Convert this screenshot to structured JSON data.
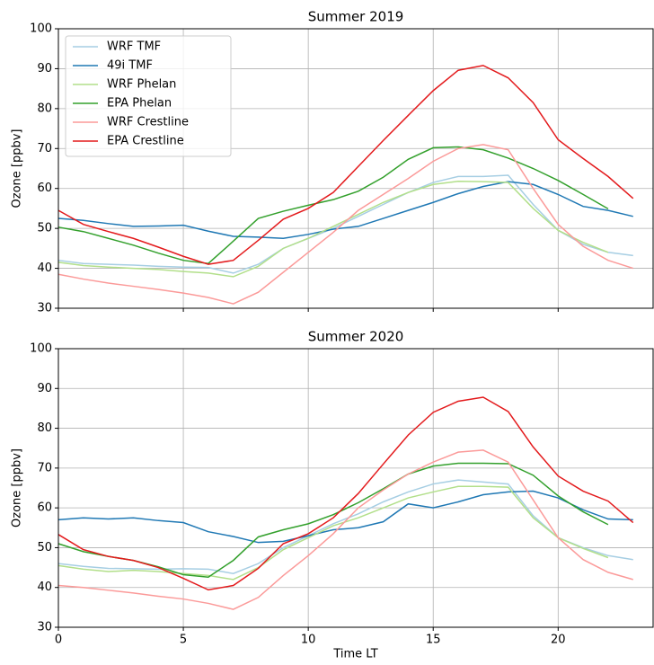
{
  "chart_data": [
    {
      "type": "line",
      "title": "Summer 2019",
      "ylabel": "Ozone [ppbv]",
      "grid": true,
      "legend": "upper left",
      "x": [
        0,
        1,
        2,
        3,
        4,
        5,
        6,
        7,
        8,
        9,
        10,
        11,
        12,
        13,
        14,
        15,
        16,
        17,
        18,
        19,
        20,
        21,
        22,
        23
      ],
      "xlim": [
        0,
        23.8
      ],
      "xticks": [
        0,
        5,
        10,
        15,
        20
      ],
      "ylim": [
        30,
        100
      ],
      "yticks": [
        30,
        40,
        50,
        60,
        70,
        80,
        90,
        100
      ],
      "series": [
        {
          "name": "WRF TMF",
          "color": "#a6cee3",
          "values": [
            42,
            41.2,
            41,
            40.8,
            40.5,
            40.3,
            40.2,
            38.8,
            41,
            45,
            47.5,
            50,
            53,
            56,
            59,
            61.5,
            63,
            63,
            63.3,
            56,
            49.5,
            46,
            44,
            43.2
          ]
        },
        {
          "name": "49i TMF",
          "color": "#1f78b4",
          "values": [
            52.5,
            52,
            51.2,
            50.5,
            50.6,
            50.8,
            49.3,
            48,
            47.8,
            47.5,
            48.5,
            49.8,
            50.5,
            52.5,
            54.5,
            56.5,
            58.7,
            60.5,
            61.7,
            61,
            58.5,
            55.5,
            54.5,
            53
          ]
        },
        {
          "name": "WRF Phelan",
          "color": "#b2df8a",
          "values": [
            41.5,
            40.7,
            40.3,
            40,
            39.7,
            39.2,
            38.8,
            37.9,
            40.5,
            45,
            47.5,
            50.5,
            53.5,
            56.5,
            59,
            61,
            61.8,
            61.7,
            61.5,
            55,
            49.5,
            46.5,
            44,
            null
          ]
        },
        {
          "name": "EPA Phelan",
          "color": "#33a02c",
          "values": [
            50.3,
            49.2,
            47.5,
            45.8,
            43.8,
            42,
            41.2,
            46.8,
            52.5,
            54.3,
            55.8,
            57.2,
            59.3,
            62.8,
            67.3,
            70.2,
            70.4,
            69.7,
            67.6,
            65,
            62,
            58.5,
            54.9,
            null
          ]
        },
        {
          "name": "WRF Crestline",
          "color": "#fb9a99",
          "values": [
            38.5,
            37.3,
            36.3,
            35.5,
            34.7,
            33.8,
            32.7,
            31.1,
            34,
            39,
            44,
            49,
            54.5,
            58.5,
            62.5,
            66.8,
            70,
            71,
            69.7,
            60,
            51,
            45.5,
            42,
            40
          ]
        },
        {
          "name": "EPA Crestline",
          "color": "#e31a1c",
          "values": [
            54.5,
            51,
            49.2,
            47.5,
            45.3,
            43,
            41,
            42,
            47,
            52.3,
            55,
            59,
            65.5,
            72,
            78.3,
            84.5,
            89.6,
            90.8,
            87.7,
            81.5,
            72.2,
            67.5,
            63,
            57.5
          ]
        }
      ]
    },
    {
      "type": "line",
      "title": "Summer 2020",
      "ylabel": "Ozone [ppbv]",
      "xlabel": "Time LT",
      "grid": true,
      "x": [
        0,
        1,
        2,
        3,
        4,
        5,
        6,
        7,
        8,
        9,
        10,
        11,
        12,
        13,
        14,
        15,
        16,
        17,
        18,
        19,
        20,
        21,
        22,
        23
      ],
      "xlim": [
        0,
        23.8
      ],
      "xticks": [
        0,
        5,
        10,
        15,
        20
      ],
      "ylim": [
        30,
        100
      ],
      "yticks": [
        30,
        40,
        50,
        60,
        70,
        80,
        90,
        100
      ],
      "series": [
        {
          "color": "#a6cee3",
          "values": [
            46,
            45.3,
            44.8,
            44.7,
            44.6,
            44.7,
            44.6,
            43.5,
            46,
            50,
            53,
            56,
            58.5,
            61.5,
            64,
            66,
            67,
            66.5,
            66,
            58,
            52.5,
            50,
            48,
            47
          ]
        },
        {
          "color": "#1f78b4",
          "values": [
            57,
            57.5,
            57.2,
            57.5,
            56.8,
            56.3,
            54,
            52.8,
            51.3,
            51.6,
            53,
            54.5,
            55,
            56.5,
            61,
            60,
            61.5,
            63.3,
            64,
            64.2,
            62.5,
            59.5,
            57.2,
            57
          ]
        },
        {
          "color": "#b2df8a",
          "values": [
            45.5,
            44.6,
            44,
            44.3,
            44,
            43.5,
            43,
            42,
            45,
            49.5,
            52.5,
            55.5,
            57.5,
            60,
            62.5,
            64,
            65.4,
            65.4,
            65.2,
            57.5,
            52.5,
            49.8,
            47.5,
            null
          ]
        },
        {
          "color": "#33a02c",
          "values": [
            51,
            49,
            47.8,
            46.8,
            45.2,
            43.2,
            42.6,
            46.8,
            52.7,
            54.5,
            56,
            58.3,
            61.3,
            64.8,
            68.5,
            70.5,
            71.2,
            71.2,
            71.1,
            68.2,
            63,
            59,
            55.8,
            null
          ]
        },
        {
          "color": "#fb9a99",
          "values": [
            40.5,
            40,
            39.3,
            38.6,
            37.8,
            37.1,
            36,
            34.5,
            37.5,
            43,
            48,
            53.5,
            60,
            64.5,
            68.5,
            71.5,
            74,
            74.5,
            71.5,
            62,
            52.5,
            47,
            43.8,
            42
          ]
        },
        {
          "color": "#e31a1c",
          "values": [
            53.3,
            49.5,
            47.8,
            46.8,
            45,
            42.3,
            39.4,
            40.5,
            44.8,
            51,
            53.5,
            57.5,
            63.6,
            71,
            78.3,
            84,
            86.8,
            87.8,
            84.2,
            75.3,
            68,
            64.2,
            61.7,
            56.3
          ]
        }
      ]
    }
  ]
}
